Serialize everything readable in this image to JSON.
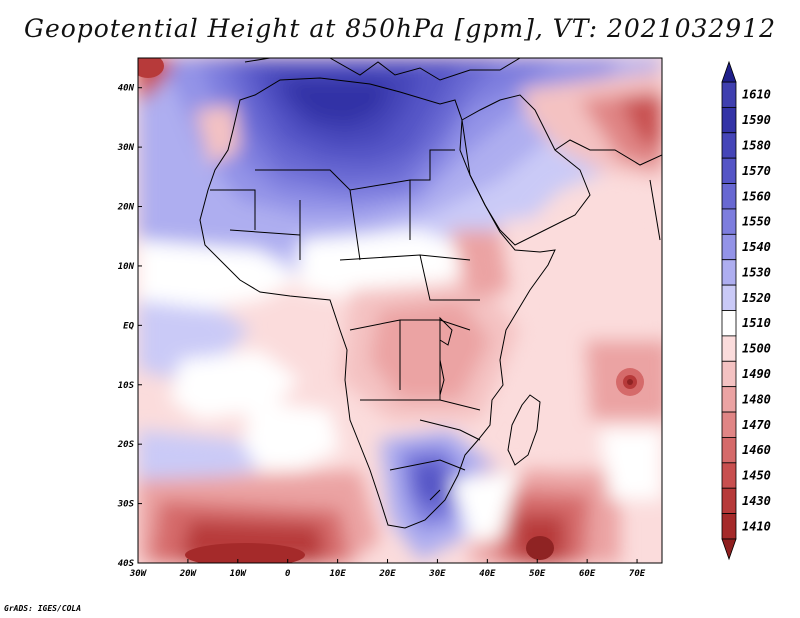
{
  "title": "Geopotential Height at 850hPa [gpm], VT: 2021032912",
  "footer": "GrADS: IGES/COLA",
  "map": {
    "lon_range": [
      -30,
      75
    ],
    "lat_range": [
      -40,
      45
    ],
    "x_ticks": [
      {
        "value": -30,
        "label": "30W"
      },
      {
        "value": -20,
        "label": "20W"
      },
      {
        "value": -10,
        "label": "10W"
      },
      {
        "value": 0,
        "label": "0"
      },
      {
        "value": 10,
        "label": "10E"
      },
      {
        "value": 20,
        "label": "20E"
      },
      {
        "value": 30,
        "label": "30E"
      },
      {
        "value": 40,
        "label": "40E"
      },
      {
        "value": 50,
        "label": "50E"
      },
      {
        "value": 60,
        "label": "60E"
      },
      {
        "value": 70,
        "label": "70E"
      }
    ],
    "y_ticks": [
      {
        "value": 40,
        "label": "40N"
      },
      {
        "value": 30,
        "label": "30N"
      },
      {
        "value": 20,
        "label": "20N"
      },
      {
        "value": 10,
        "label": "10N"
      },
      {
        "value": 0,
        "label": "EQ"
      },
      {
        "value": -10,
        "label": "10S"
      },
      {
        "value": -20,
        "label": "20S"
      },
      {
        "value": -30,
        "label": "30S"
      },
      {
        "value": -40,
        "label": "40S"
      }
    ]
  },
  "colorbar": {
    "levels": [
      "1610",
      "1590",
      "1580",
      "1570",
      "1560",
      "1550",
      "1540",
      "1530",
      "1520",
      "1510",
      "1500",
      "1490",
      "1480",
      "1470",
      "1460",
      "1450",
      "1430",
      "1410"
    ],
    "colors": [
      "#3f3faf",
      "#3333a6",
      "#4545b8",
      "#5555c6",
      "#6868d2",
      "#7d7dde",
      "#9393e7",
      "#aeaef0",
      "#cacaf7",
      "#ffffff",
      "#fbdcdc",
      "#f4c2c2",
      "#eba3a3",
      "#e08585",
      "#d56a6a",
      "#c84f4f",
      "#b73a3a",
      "#a52a2a"
    ]
  }
}
